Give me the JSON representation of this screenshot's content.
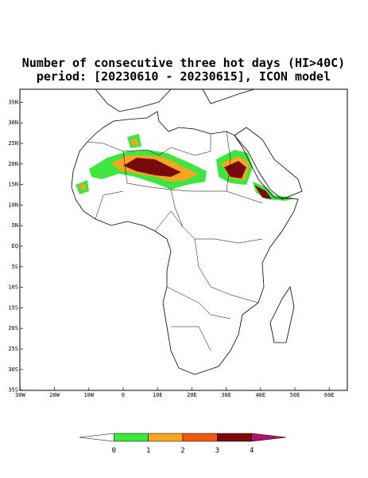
{
  "title": "Number of consecutive three hot days (HI>40C)",
  "subtitle": "period: [20230610 - 20230615], ICON model",
  "map": {
    "lon_ticks": [
      {
        "value": -30,
        "label": "30W"
      },
      {
        "value": -20,
        "label": "20W"
      },
      {
        "value": -10,
        "label": "10W"
      },
      0,
      {
        "value": 10,
        "label": "10E"
      },
      {
        "value": 20,
        "label": "20E"
      },
      {
        "value": 30,
        "label": "30E"
      },
      {
        "value": 40,
        "label": "40E"
      },
      {
        "value": 50,
        "label": "50E"
      },
      {
        "value": 60,
        "label": "60E"
      }
    ],
    "lat_ticks": [
      {
        "value": 35,
        "label": "35N"
      },
      {
        "value": 30,
        "label": "30N"
      },
      {
        "value": 25,
        "label": "25N"
      },
      {
        "value": 20,
        "label": "20N"
      },
      {
        "value": 15,
        "label": "15N"
      },
      {
        "value": 10,
        "label": "10N"
      },
      {
        "value": 5,
        "label": "5N"
      },
      {
        "value": 0,
        "label": "EQ"
      },
      {
        "value": -5,
        "label": "5S"
      },
      {
        "value": -10,
        "label": "10S"
      },
      {
        "value": -15,
        "label": "15S"
      },
      {
        "value": -20,
        "label": "20S"
      },
      {
        "value": -25,
        "label": "25S"
      },
      {
        "value": -30,
        "label": "30S"
      },
      {
        "value": -35,
        "label": "35S"
      }
    ]
  },
  "colorbar": {
    "colors": [
      "#ffffff",
      "#3fe63f",
      "#f5a623",
      "#ee5a10",
      "#7a0a0a",
      "#b0146e"
    ],
    "ticks": [
      0,
      1,
      2,
      3,
      4
    ]
  }
}
